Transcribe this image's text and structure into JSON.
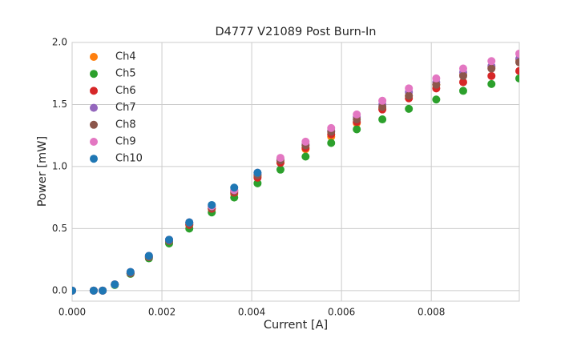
{
  "chart_data": {
    "type": "scatter",
    "title": "D4777 V21089 Post Burn-In",
    "xlabel": "Current [A]",
    "ylabel": "Power [mW]",
    "x": [
      0,
      0.00048,
      0.00068,
      0.00095,
      0.0013,
      0.00171,
      0.00216,
      0.00261,
      0.00311,
      0.00361,
      0.00413,
      0.00464,
      0.0052,
      0.00577,
      0.00634,
      0.00691,
      0.0075,
      0.00811,
      0.00871,
      0.00934,
      0.00996
    ],
    "series": [
      {
        "name": "Ch4",
        "color": "#ff7f0e",
        "values": [
          0,
          0,
          0,
          0.05,
          0.14,
          0.27,
          0.4,
          0.53,
          0.66,
          0.78,
          0.92,
          1.03,
          1.14,
          1.24,
          1.35,
          1.47,
          1.57,
          1.66,
          1.74,
          1.8,
          1.86
        ]
      },
      {
        "name": "Ch5",
        "color": "#2ca02c",
        "values": [
          0,
          0,
          0,
          0.045,
          0.135,
          0.26,
          0.38,
          0.5,
          0.63,
          0.75,
          0.865,
          0.975,
          1.08,
          1.19,
          1.3,
          1.38,
          1.465,
          1.54,
          1.61,
          1.665,
          1.71
        ]
      },
      {
        "name": "Ch6",
        "color": "#d62728",
        "values": [
          0,
          0,
          0,
          0.05,
          0.14,
          0.27,
          0.4,
          0.53,
          0.66,
          0.79,
          0.91,
          1.03,
          1.15,
          1.26,
          1.36,
          1.46,
          1.55,
          1.63,
          1.68,
          1.73,
          1.77
        ]
      },
      {
        "name": "Ch7",
        "color": "#9467bd",
        "values": [
          0,
          0,
          0,
          0.05,
          0.15,
          0.28,
          0.41,
          0.55,
          0.68,
          0.81,
          0.94,
          1.06,
          1.18,
          1.29,
          1.4,
          1.5,
          1.6,
          1.68,
          1.76,
          1.81,
          1.87
        ]
      },
      {
        "name": "Ch8",
        "color": "#8c564b",
        "values": [
          0,
          0,
          0,
          0.05,
          0.14,
          0.27,
          0.4,
          0.54,
          0.67,
          0.8,
          0.93,
          1.05,
          1.17,
          1.28,
          1.38,
          1.48,
          1.57,
          1.66,
          1.73,
          1.79,
          1.84
        ]
      },
      {
        "name": "Ch9",
        "color": "#e377c2",
        "values": [
          0,
          0,
          0,
          0.05,
          0.15,
          0.28,
          0.41,
          0.55,
          0.68,
          0.81,
          0.95,
          1.07,
          1.2,
          1.31,
          1.42,
          1.53,
          1.63,
          1.71,
          1.79,
          1.85,
          1.91
        ]
      },
      {
        "name": "Ch10",
        "color": "#1f77b4",
        "values": [
          0,
          0,
          0,
          0.05,
          0.15,
          0.28,
          0.41,
          0.55,
          0.69,
          0.83,
          0.95,
          null,
          null,
          null,
          null,
          null,
          null,
          null,
          null,
          null,
          null
        ]
      }
    ],
    "xlim": [
      0,
      0.00996
    ],
    "ylim": [
      -0.085,
      2.0
    ],
    "xticks": [
      {
        "value": 0,
        "label": "0.000"
      },
      {
        "value": 0.002,
        "label": "0.002"
      },
      {
        "value": 0.004,
        "label": "0.004"
      },
      {
        "value": 0.006,
        "label": "0.006"
      },
      {
        "value": 0.008,
        "label": "0.008"
      }
    ],
    "yticks": [
      {
        "value": 0,
        "label": "0.0"
      },
      {
        "value": 0.5,
        "label": "0.5"
      },
      {
        "value": 1,
        "label": "1.0"
      },
      {
        "value": 1.5,
        "label": "1.5"
      },
      {
        "value": 2,
        "label": "2.0"
      }
    ],
    "grid": true,
    "legend": "upper-left"
  }
}
